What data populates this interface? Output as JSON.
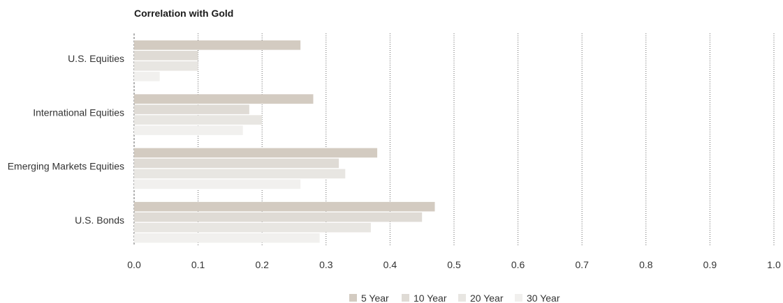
{
  "chart_data": {
    "type": "bar",
    "orientation": "horizontal",
    "title": "Correlation with Gold",
    "xlabel": "",
    "ylabel": "",
    "categories": [
      "U.S. Equities",
      "International Equities",
      "Emerging Markets Equities",
      "U.S. Bonds"
    ],
    "series": [
      {
        "name": "5 Year",
        "color": "#d3cbc1",
        "values": [
          0.26,
          0.28,
          0.38,
          0.47
        ]
      },
      {
        "name": "10 Year",
        "color": "#dfdbd5",
        "values": [
          0.1,
          0.18,
          0.32,
          0.45
        ]
      },
      {
        "name": "20 Year",
        "color": "#e8e6e2",
        "values": [
          0.1,
          0.2,
          0.33,
          0.37
        ]
      },
      {
        "name": "30 Year",
        "color": "#f1f0ee",
        "values": [
          0.04,
          0.17,
          0.26,
          0.29
        ]
      }
    ],
    "xlim": [
      0,
      1.0
    ],
    "xticks": [
      "0.0",
      "0.1",
      "0.2",
      "0.3",
      "0.4",
      "0.5",
      "0.6",
      "0.7",
      "0.8",
      "0.9",
      "1.0"
    ],
    "grid": "vertical dotted",
    "legend_position": "bottom"
  }
}
